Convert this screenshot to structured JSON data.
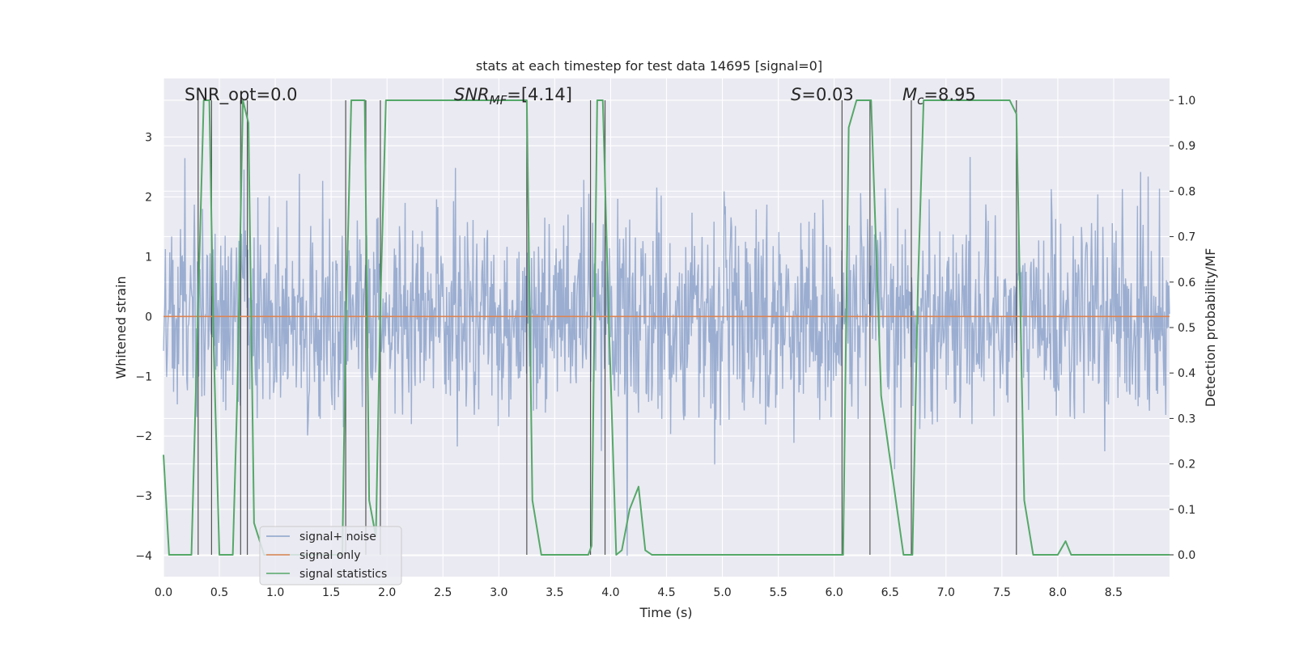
{
  "chart_data": {
    "type": "line",
    "title": "stats at each timestep for test data 14695 [signal=0]",
    "xlabel": "Time (s)",
    "ylabel_left": "Whitened strain",
    "ylabel_right": "Detection probability/MF",
    "xlim": [
      0,
      9
    ],
    "ylim_left": [
      -4.35,
      3.98
    ],
    "ylim_right": [
      -0.048,
      1.048
    ],
    "x_ticks": [
      0.0,
      0.5,
      1.0,
      1.5,
      2.0,
      2.5,
      3.0,
      3.5,
      4.0,
      4.5,
      5.0,
      5.5,
      6.0,
      6.5,
      7.0,
      7.5,
      8.0,
      8.5
    ],
    "x_tick_labels": [
      "0.0",
      "0.5",
      "1.0",
      "1.5",
      "2.0",
      "2.5",
      "3.0",
      "3.5",
      "4.0",
      "4.5",
      "5.0",
      "5.5",
      "6.0",
      "6.5",
      "7.0",
      "7.5",
      "8.0",
      "8.5"
    ],
    "y_left_ticks": [
      3,
      2,
      1,
      0,
      -1,
      -2,
      -3,
      -4
    ],
    "y_left_tick_labels": [
      "3",
      "2",
      "1",
      "0",
      "−1",
      "−2",
      "−3",
      "−4"
    ],
    "y_right_ticks": [
      1.0,
      0.9,
      0.8,
      0.7,
      0.6,
      0.5,
      0.4,
      0.3,
      0.2,
      0.1,
      0.0
    ],
    "y_right_tick_labels": [
      "1.0",
      "0.9",
      "0.8",
      "0.7",
      "0.6",
      "0.5",
      "0.4",
      "0.3",
      "0.2",
      "0.1",
      "0.0"
    ],
    "annotations": {
      "snr_opt": "SNR_opt=0.0",
      "snr_mf_main": "SNR",
      "snr_mf_sub": "MF",
      "snr_mf_rest": "=[4.14]",
      "s_var": "S",
      "s_rest": "=0.03",
      "mc_var": "M",
      "mc_sub": "c",
      "mc_rest": "=8.95"
    },
    "legend": {
      "position": "lower-left",
      "entries": [
        "signal+ noise",
        "signal only",
        "signal statistics"
      ]
    },
    "colors": {
      "noise": "#4c72b0",
      "signal_only": "#dd8452",
      "statistics": "#55a868",
      "event_lines": "#3a3a3a",
      "plot_bg": "#eaeaf2",
      "grid": "#ffffff"
    },
    "series": [
      {
        "name": "signal+ noise",
        "kind": "noise",
        "n_points": 1600,
        "std": 0.85,
        "clip": [
          -4.0,
          3.65
        ]
      },
      {
        "name": "signal only",
        "kind": "constant",
        "value": 0
      },
      {
        "name": "signal statistics",
        "kind": "line",
        "x": [
          0.0,
          0.05,
          0.25,
          0.31,
          0.36,
          0.41,
          0.45,
          0.5,
          0.62,
          0.66,
          0.71,
          0.76,
          0.81,
          0.9,
          1.6,
          1.63,
          1.68,
          1.8,
          1.84,
          1.9,
          1.94,
          1.99,
          3.25,
          3.3,
          3.38,
          3.8,
          3.83,
          3.88,
          3.93,
          3.98,
          4.05,
          4.1,
          4.17,
          4.25,
          4.31,
          4.37,
          6.08,
          6.13,
          6.2,
          6.33,
          6.42,
          6.62,
          6.7,
          6.75,
          6.8,
          7.57,
          7.63,
          7.7,
          7.78,
          8.0,
          8.07,
          8.12,
          8.25,
          9.0
        ],
        "y": [
          0.22,
          0.0,
          0.0,
          0.55,
          1.0,
          1.0,
          0.45,
          0.0,
          0.0,
          0.35,
          1.0,
          0.95,
          0.07,
          0.0,
          0.0,
          0.5,
          1.0,
          1.0,
          0.12,
          0.04,
          0.55,
          1.0,
          1.0,
          0.12,
          0.0,
          0.0,
          0.02,
          1.0,
          1.0,
          0.55,
          0.0,
          0.01,
          0.1,
          0.15,
          0.01,
          0.0,
          0.0,
          0.94,
          1.0,
          1.0,
          0.35,
          0.0,
          0.0,
          0.6,
          1.0,
          1.0,
          0.97,
          0.12,
          0.0,
          0.0,
          0.03,
          0.0,
          0.0,
          0.0
        ]
      }
    ],
    "event_lines_x": [
      0.31,
      0.43,
      0.69,
      0.75,
      1.63,
      1.81,
      1.94,
      3.25,
      3.82,
      3.95,
      6.07,
      6.32,
      6.69,
      7.63
    ]
  }
}
